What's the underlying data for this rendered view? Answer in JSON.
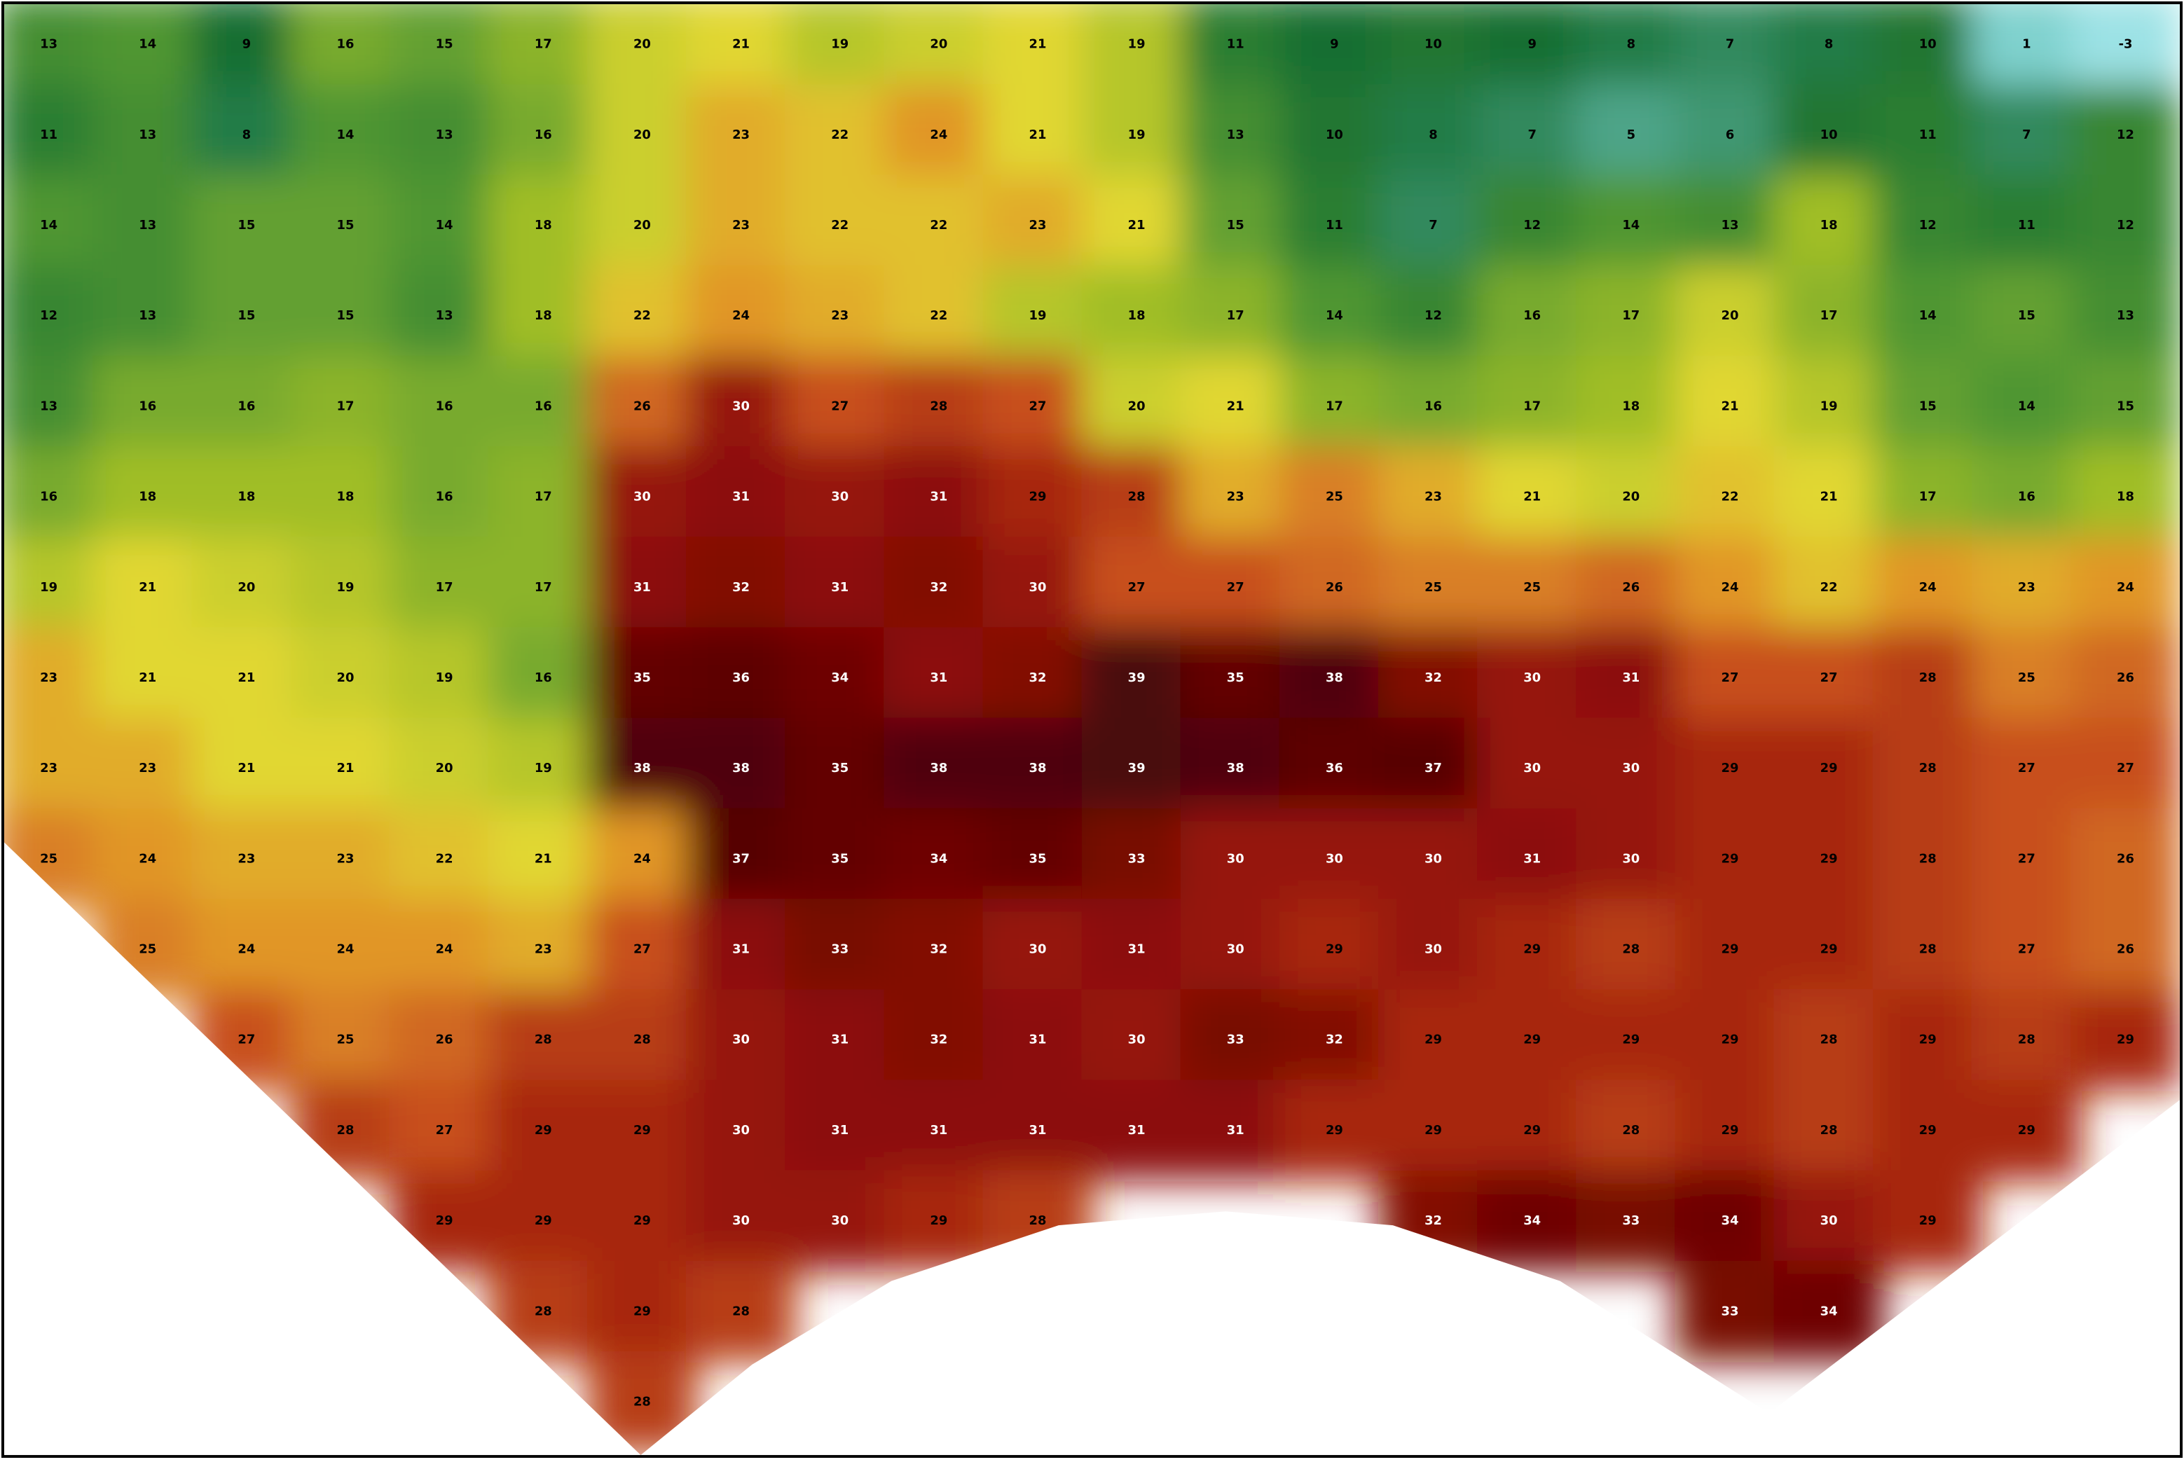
{
  "map": {
    "rows": [
      [
        13,
        14,
        9,
        16,
        15,
        17,
        20,
        21,
        19,
        20,
        21,
        19,
        11,
        9,
        10,
        9,
        8,
        7,
        8,
        10,
        1,
        -3
      ],
      [
        11,
        13,
        8,
        14,
        13,
        16,
        20,
        23,
        22,
        24,
        21,
        19,
        13,
        10,
        8,
        7,
        5,
        6,
        10,
        11,
        7,
        12
      ],
      [
        14,
        13,
        15,
        15,
        14,
        18,
        20,
        23,
        22,
        22,
        23,
        21,
        15,
        11,
        7,
        12,
        14,
        13,
        18,
        12,
        11,
        12
      ],
      [
        12,
        13,
        15,
        15,
        13,
        18,
        22,
        24,
        23,
        22,
        19,
        18,
        17,
        14,
        12,
        16,
        17,
        20,
        17,
        14,
        15,
        13
      ],
      [
        13,
        16,
        16,
        17,
        16,
        16,
        26,
        30,
        27,
        28,
        27,
        20,
        21,
        17,
        16,
        17,
        18,
        21,
        19,
        15,
        14,
        15
      ],
      [
        16,
        18,
        18,
        18,
        16,
        17,
        30,
        31,
        30,
        31,
        29,
        28,
        23,
        25,
        23,
        21,
        20,
        22,
        21,
        17,
        16,
        18
      ],
      [
        19,
        21,
        20,
        19,
        17,
        17,
        31,
        32,
        31,
        32,
        30,
        27,
        27,
        26,
        25,
        25,
        26,
        24,
        22,
        24,
        23,
        24
      ],
      [
        23,
        21,
        21,
        20,
        19,
        16,
        35,
        36,
        34,
        31,
        32,
        39,
        35,
        38,
        32,
        30,
        31,
        27,
        27,
        28,
        25,
        26
      ],
      [
        23,
        23,
        21,
        21,
        20,
        19,
        38,
        38,
        35,
        38,
        38,
        39,
        38,
        36,
        37,
        30,
        30,
        29,
        29,
        28,
        27,
        27
      ],
      [
        25,
        24,
        23,
        23,
        22,
        21,
        24,
        37,
        35,
        34,
        35,
        33,
        30,
        30,
        30,
        31,
        30,
        29,
        29,
        28,
        27,
        26
      ],
      [
        null,
        25,
        24,
        24,
        24,
        23,
        27,
        31,
        33,
        32,
        30,
        31,
        30,
        29,
        30,
        29,
        28,
        29,
        29,
        28,
        27,
        26
      ],
      [
        null,
        null,
        27,
        25,
        26,
        28,
        28,
        30,
        31,
        32,
        31,
        30,
        33,
        32,
        29,
        29,
        29,
        29,
        28,
        29,
        28,
        29
      ],
      [
        null,
        null,
        null,
        28,
        27,
        29,
        29,
        30,
        31,
        31,
        31,
        31,
        31,
        29,
        29,
        29,
        28,
        29,
        28,
        29,
        29,
        null
      ],
      [
        null,
        null,
        null,
        null,
        29,
        29,
        29,
        30,
        30,
        29,
        28,
        null,
        null,
        null,
        32,
        34,
        33,
        34,
        30,
        29,
        null,
        null
      ],
      [
        null,
        null,
        null,
        null,
        null,
        28,
        29,
        28,
        null,
        null,
        null,
        null,
        null,
        null,
        null,
        null,
        null,
        33,
        34,
        null,
        null,
        null
      ],
      [
        null,
        null,
        null,
        null,
        null,
        null,
        28,
        null,
        null,
        null,
        null,
        null,
        null,
        null,
        null,
        null,
        null,
        null,
        null,
        null,
        null,
        null
      ]
    ]
  }
}
